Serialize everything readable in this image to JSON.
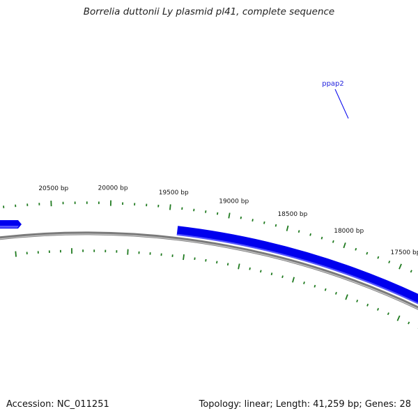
{
  "title": "Borrelia duttonii Ly plasmid pl41, complete sequence",
  "footer": {
    "accession": "Accession: NC_011251",
    "summary": "Topology: linear; Length: 41,259 bp; Genes: 28"
  },
  "position_labels": [
    "17500 bp",
    "18000 bp",
    "18500 bp",
    "19000 bp",
    "19500 bp",
    "20000 bp",
    "20500 bp"
  ],
  "genes": [
    {
      "name": "ppap2",
      "strand": "+"
    }
  ],
  "colors": {
    "gene": "#0000ee",
    "gene_light": "#5555ff",
    "backbone": "#7a7a7a",
    "backbone_light": "#cfcfcf",
    "ticks": "#1f7a1f",
    "gene_label": "#2222dd",
    "text": "#111111"
  }
}
